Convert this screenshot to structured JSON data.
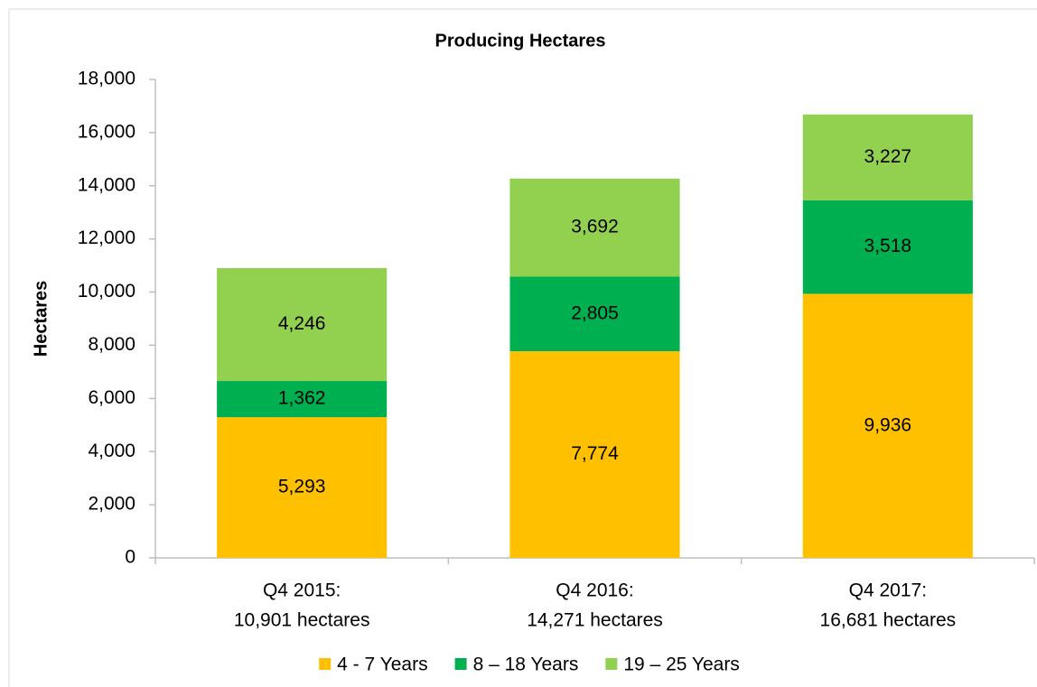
{
  "chart_data": {
    "type": "stacked_bar",
    "title": "Producing Hectares",
    "y_label": "Hectares",
    "categories": [
      [
        "Q4 2015:",
        "10,901 hectares"
      ],
      [
        "Q4 2016:",
        "14,271 hectares"
      ],
      [
        "Q4 2017:",
        "16,681 hectares"
      ]
    ],
    "series": [
      {
        "name": "4 - 7 Years",
        "color": "#ffc000",
        "values": [
          5293,
          7774,
          9936
        ],
        "value_labels": [
          "5,293",
          "7,774",
          "9,936"
        ]
      },
      {
        "name": "8 – 18 Years",
        "color": "#00b050",
        "values": [
          1362,
          2805,
          3518
        ],
        "value_labels": [
          "1,362",
          "2,805",
          "3,518"
        ]
      },
      {
        "name": "19 – 25 Years",
        "color": "#92d050",
        "values": [
          4246,
          3692,
          3227
        ],
        "value_labels": [
          "4,246",
          "3,692",
          "3,227"
        ]
      }
    ],
    "ylim": [
      0,
      18000
    ],
    "yticks": [
      0,
      {
        "value": 2000,
        "label": "2,000"
      },
      {
        "value": 4000,
        "label": "4,000"
      },
      {
        "value": 6000,
        "label": "6,000"
      },
      {
        "value": 8000,
        "label": "8,000"
      },
      {
        "value": 10000,
        "label": "10,000"
      },
      {
        "value": 12000,
        "label": "12,000"
      },
      {
        "value": 14000,
        "label": "14,000"
      },
      {
        "value": 16000,
        "label": "16,000"
      },
      {
        "value": 18000,
        "label": "18,000"
      }
    ],
    "legend": "bottom",
    "grid": false
  }
}
